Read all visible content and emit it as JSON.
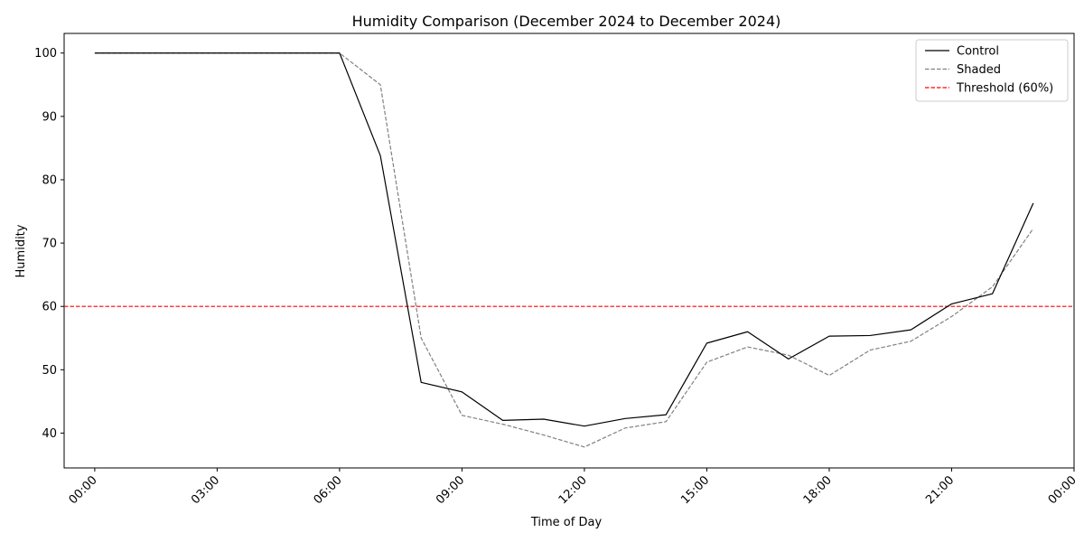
{
  "chart_data": {
    "type": "line",
    "title": "Humidity Comparison (December 2024 to December 2024)",
    "xlabel": "Time of Day",
    "ylabel": "Humidity",
    "x_unit": "hour",
    "xlim": [
      -0.75,
      24.0
    ],
    "ylim": [
      34.5,
      103.1
    ],
    "x_ticks": [
      0,
      3,
      6,
      9,
      12,
      15,
      18,
      21,
      24
    ],
    "x_tick_labels": [
      "00:00",
      "03:00",
      "06:00",
      "09:00",
      "12:00",
      "15:00",
      "18:00",
      "21:00",
      "00:00"
    ],
    "y_ticks": [
      40,
      50,
      60,
      70,
      80,
      90,
      100
    ],
    "y_tick_labels": [
      "40",
      "50",
      "60",
      "70",
      "80",
      "90",
      "100"
    ],
    "grid": false,
    "legend_position": "top-right",
    "x": [
      0,
      1,
      2,
      3,
      4,
      5,
      6,
      7,
      8,
      9,
      10,
      11,
      12,
      13,
      14,
      15,
      16,
      17,
      18,
      19,
      20,
      21,
      22,
      23
    ],
    "series": [
      {
        "name": "Control",
        "color": "#000000",
        "dash": "solid",
        "values": [
          100,
          100,
          100,
          100,
          100,
          100,
          100,
          83.8,
          48.0,
          46.5,
          42.0,
          42.2,
          41.1,
          42.3,
          42.9,
          54.2,
          56.0,
          51.7,
          55.3,
          55.4,
          56.3,
          60.4,
          62.0,
          76.3
        ]
      },
      {
        "name": "Shaded",
        "color": "#808080",
        "dash": "dashed",
        "values": [
          100,
          100,
          100,
          100,
          100,
          100,
          100,
          95.0,
          55.0,
          42.8,
          41.4,
          39.7,
          37.8,
          40.8,
          41.8,
          51.2,
          53.6,
          52.3,
          49.1,
          53.1,
          54.5,
          58.4,
          63.1,
          72.3
        ]
      }
    ],
    "reference_lines": [
      {
        "name": "Threshold (60%)",
        "axis": "y",
        "value": 60,
        "color": "#ff0000",
        "dash": "dashed"
      }
    ]
  }
}
